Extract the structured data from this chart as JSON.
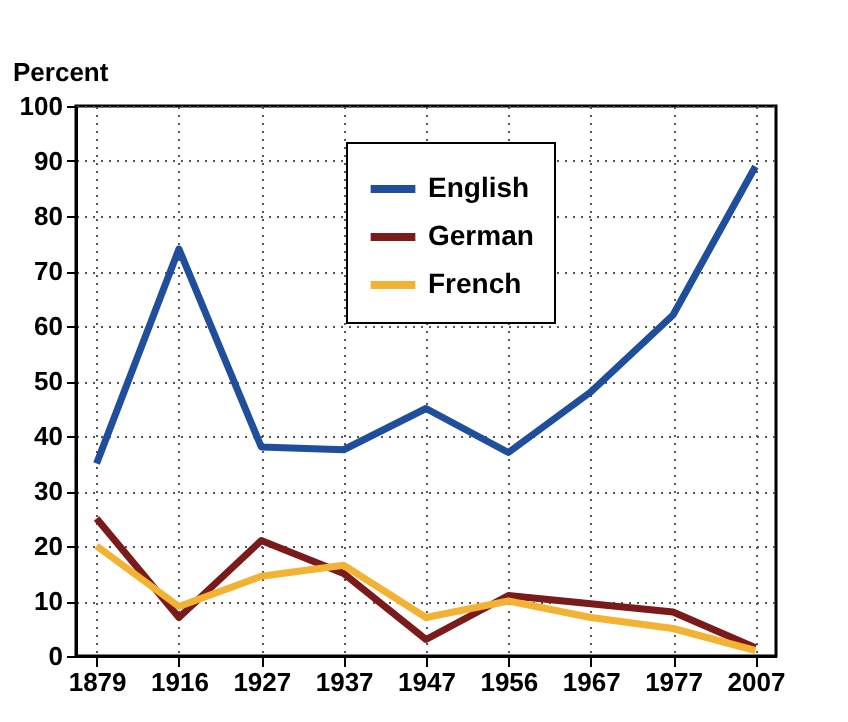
{
  "chart_data": {
    "type": "line",
    "ylabel": "Percent",
    "categories": [
      "1879",
      "1916",
      "1927",
      "1937",
      "1947",
      "1956",
      "1967",
      "1977",
      "2007"
    ],
    "series": [
      {
        "name": "English",
        "color": "#1f4e9c",
        "values": [
          35,
          74,
          38,
          37.5,
          45,
          37,
          48,
          62,
          89
        ]
      },
      {
        "name": "German",
        "color": "#7b1a1a",
        "values": [
          25,
          7,
          21,
          15,
          3,
          11,
          9.5,
          8,
          1.5
        ]
      },
      {
        "name": "French",
        "color": "#f2b233",
        "values": [
          20,
          9,
          14.5,
          16.5,
          7,
          10,
          7,
          5,
          1
        ]
      }
    ],
    "ylim": [
      0,
      100
    ],
    "yticks": [
      0,
      10,
      20,
      30,
      40,
      50,
      60,
      70,
      80,
      90,
      100
    ],
    "grid": true,
    "legend": "top",
    "marker": "none",
    "line_style": "solid"
  }
}
